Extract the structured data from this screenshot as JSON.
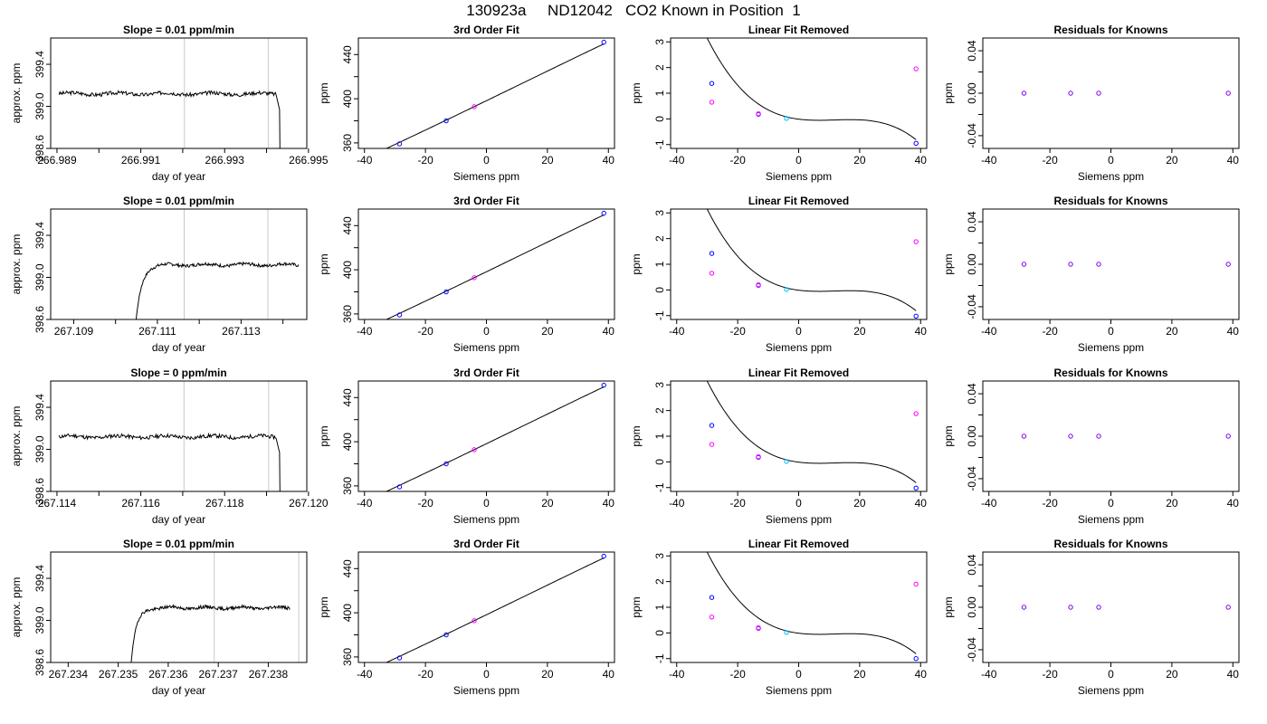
{
  "title_parts": [
    "130923a",
    "ND12042",
    "CO2 Known in Position  1"
  ],
  "colors": {
    "trace": "#000000",
    "marker_line": "#c8c8c8",
    "blue": "#0000ff",
    "magenta": "#ff00ff",
    "cyan": "#00bfff",
    "frame": "#000000"
  },
  "chart_data": [
    {
      "row": 1,
      "type": "line",
      "panel": "timeseries",
      "title": "Slope =  0.01  ppm/min",
      "xlabel": "day of year",
      "ylabel": "approx. ppm",
      "xlim": [
        266.98885,
        266.99496
      ],
      "ylim": [
        398.6,
        399.65
      ],
      "xticks": [
        266.989,
        266.99,
        266.991,
        266.992,
        266.993,
        266.994,
        266.995
      ],
      "xtick_labels": [
        "266.989",
        "",
        "266.991",
        "",
        "266.993",
        "",
        "266.995"
      ],
      "yticks": [
        398.6,
        399.0,
        399.4
      ],
      "ytick_labels": [
        "398.6",
        "399.0",
        "399.4"
      ],
      "markers": [
        266.99204,
        266.99404
      ],
      "trace": {
        "x0": 266.98905,
        "x1": 266.99423,
        "level": 399.12,
        "seed": 3,
        "rise_x": null,
        "drop_x": 266.99431,
        "rise_from": null,
        "wiggle": 0.018
      }
    },
    {
      "row": 2,
      "type": "line",
      "panel": "timeseries",
      "title": "Slope =  0.01  ppm/min",
      "xlabel": "day of year",
      "ylabel": "approx. ppm",
      "xlim": [
        267.10845,
        267.11457
      ],
      "ylim": [
        398.6,
        399.65
      ],
      "xticks": [
        267.109,
        267.11,
        267.111,
        267.112,
        267.113,
        267.114
      ],
      "xtick_labels": [
        "267.109",
        "",
        "267.111",
        "",
        "267.113",
        ""
      ],
      "yticks": [
        398.6,
        399.0,
        399.4
      ],
      "ytick_labels": [
        "398.6",
        "399.0",
        "399.4"
      ],
      "markers": [
        267.11164,
        267.11364
      ],
      "trace": {
        "x0": 267.11003,
        "x1": 267.11437,
        "level": 399.12,
        "seed": 7,
        "rise_x": 267.11048,
        "drop_x": null,
        "rise_from": 398.55,
        "wiggle": 0.015
      }
    },
    {
      "row": 3,
      "type": "line",
      "panel": "timeseries",
      "title": "Slope =  0  ppm/min",
      "xlabel": "day of year",
      "ylabel": "approx. ppm",
      "xlim": [
        267.11385,
        267.11996
      ],
      "ylim": [
        398.6,
        399.65
      ],
      "xticks": [
        267.114,
        267.115,
        267.116,
        267.117,
        267.118,
        267.119,
        267.12
      ],
      "xtick_labels": [
        "267.114",
        "",
        "267.116",
        "",
        "267.118",
        "",
        "267.120"
      ],
      "yticks": [
        398.6,
        399.0,
        399.4
      ],
      "ytick_labels": [
        "398.6",
        "399.0",
        "399.4"
      ],
      "markers": [
        267.11703,
        267.11905
      ],
      "trace": {
        "x0": 267.11405,
        "x1": 267.11923,
        "level": 399.12,
        "seed": 11,
        "rise_x": null,
        "drop_x": 267.11931,
        "rise_from": null,
        "wiggle": 0.018
      }
    },
    {
      "row": 4,
      "type": "line",
      "panel": "timeseries",
      "title": "Slope =  0.01  ppm/min",
      "xlabel": "day of year",
      "ylabel": "approx. ppm",
      "xlim": [
        267.23365,
        267.23877
      ],
      "ylim": [
        398.6,
        399.65
      ],
      "xticks": [
        267.234,
        267.235,
        267.236,
        267.237,
        267.238
      ],
      "xtick_labels": [
        "267.234",
        "267.235",
        "267.236",
        "267.237",
        "267.238"
      ],
      "yticks": [
        398.6,
        399.0,
        399.4
      ],
      "ytick_labels": [
        "398.6",
        "399.0",
        "399.4"
      ],
      "markers": [
        267.23692,
        267.23861
      ],
      "trace": {
        "x0": 267.23517,
        "x1": 267.23843,
        "level": 399.12,
        "seed": 19,
        "rise_x": 267.23525,
        "drop_x": null,
        "rise_from": 398.55,
        "wiggle": 0.015
      }
    },
    {
      "row": 1,
      "type": "scatter",
      "panel": "fit3",
      "title": "3rd Order Fit",
      "xlabel": "Siemens ppm",
      "ylabel": "ppm",
      "xlim": [
        -42,
        42
      ],
      "ylim": [
        355,
        455
      ],
      "xticks": [
        -40,
        -20,
        0,
        20,
        40
      ],
      "xtick_labels": [
        "-40",
        "-20",
        "0",
        "20",
        "40"
      ],
      "yticks": [
        360,
        380,
        400,
        420,
        440
      ],
      "ytick_labels": [
        "360",
        "",
        "400",
        "",
        "440"
      ],
      "curve": {
        "x_from": -38,
        "x_to": 38.5,
        "coeffs": [
          398.2,
          1.3396,
          0.00033,
          -1.02e-05
        ]
      },
      "points": [
        {
          "x": -28.5,
          "y": 359.1,
          "color": "blue"
        },
        {
          "x": -13.2,
          "y": 380.0,
          "color": "blue"
        },
        {
          "x": -4.0,
          "y": 392.8,
          "color": "magenta"
        },
        {
          "x": 38.5,
          "y": 451.2,
          "color": "blue"
        }
      ]
    },
    {
      "row": 2,
      "type": "scatter",
      "panel": "fit3",
      "title": "3rd Order Fit",
      "xlabel": "Siemens ppm",
      "ylabel": "ppm",
      "xlim": [
        -42,
        42
      ],
      "ylim": [
        355,
        455
      ],
      "xticks": [
        -40,
        -20,
        0,
        20,
        40
      ],
      "xtick_labels": [
        "-40",
        "-20",
        "0",
        "20",
        "40"
      ],
      "yticks": [
        360,
        380,
        400,
        420,
        440
      ],
      "ytick_labels": [
        "360",
        "",
        "400",
        "",
        "440"
      ],
      "curve": {
        "x_from": -38,
        "x_to": 38.5,
        "coeffs": [
          398.2,
          1.3396,
          0.00033,
          -1.02e-05
        ]
      },
      "points": [
        {
          "x": -28.5,
          "y": 359.1,
          "color": "blue"
        },
        {
          "x": -13.2,
          "y": 380.0,
          "color": "blue"
        },
        {
          "x": -4.0,
          "y": 392.8,
          "color": "magenta"
        },
        {
          "x": 38.5,
          "y": 451.2,
          "color": "blue"
        }
      ]
    },
    {
      "row": 3,
      "type": "scatter",
      "panel": "fit3",
      "title": "3rd Order Fit",
      "xlabel": "Siemens ppm",
      "ylabel": "ppm",
      "xlim": [
        -42,
        42
      ],
      "ylim": [
        355,
        455
      ],
      "xticks": [
        -40,
        -20,
        0,
        20,
        40
      ],
      "xtick_labels": [
        "-40",
        "-20",
        "0",
        "20",
        "40"
      ],
      "yticks": [
        360,
        380,
        400,
        420,
        440
      ],
      "ytick_labels": [
        "360",
        "",
        "400",
        "",
        "440"
      ],
      "curve": {
        "x_from": -38,
        "x_to": 38.5,
        "coeffs": [
          398.2,
          1.3396,
          0.00033,
          -1.02e-05
        ]
      },
      "points": [
        {
          "x": -28.5,
          "y": 359.1,
          "color": "blue"
        },
        {
          "x": -13.2,
          "y": 380.0,
          "color": "blue"
        },
        {
          "x": -4.0,
          "y": 392.8,
          "color": "magenta"
        },
        {
          "x": 38.5,
          "y": 451.2,
          "color": "blue"
        }
      ]
    },
    {
      "row": 4,
      "type": "scatter",
      "panel": "fit3",
      "title": "3rd Order Fit",
      "xlabel": "Siemens ppm",
      "ylabel": "ppm",
      "xlim": [
        -42,
        42
      ],
      "ylim": [
        355,
        455
      ],
      "xticks": [
        -40,
        -20,
        0,
        20,
        40
      ],
      "xtick_labels": [
        "-40",
        "-20",
        "0",
        "20",
        "40"
      ],
      "yticks": [
        360,
        380,
        400,
        420,
        440
      ],
      "ytick_labels": [
        "360",
        "",
        "400",
        "",
        "440"
      ],
      "curve": {
        "x_from": -38,
        "x_to": 38.5,
        "coeffs": [
          398.2,
          1.3396,
          0.00033,
          -1.02e-05
        ]
      },
      "points": [
        {
          "x": -28.5,
          "y": 359.1,
          "color": "blue"
        },
        {
          "x": -13.2,
          "y": 380.0,
          "color": "blue"
        },
        {
          "x": -4.0,
          "y": 392.8,
          "color": "magenta"
        },
        {
          "x": 38.5,
          "y": 451.2,
          "color": "blue"
        }
      ]
    },
    {
      "row": 1,
      "type": "scatter",
      "panel": "linfit",
      "title": "Linear Fit Removed",
      "xlabel": "Siemens ppm",
      "ylabel": "ppm",
      "xlim": [
        -42,
        42
      ],
      "ylim": [
        -1.15,
        3.15
      ],
      "xticks": [
        -40,
        -20,
        0,
        20,
        40
      ],
      "xtick_labels": [
        "-40",
        "-20",
        "0",
        "20",
        "40"
      ],
      "yticks": [
        -1,
        0,
        1,
        2,
        3
      ],
      "ytick_labels": [
        "-1",
        "0",
        "1",
        "2",
        "3"
      ],
      "curve": {
        "x_from": -38,
        "x_to": 38.5,
        "coeffs": [
          -0.011,
          -0.0154,
          0.00162,
          -4.57e-05
        ]
      },
      "points": [
        {
          "x": -28.5,
          "y": 1.38,
          "color": "blue"
        },
        {
          "x": -28.5,
          "y": 0.65,
          "color": "magenta"
        },
        {
          "x": -13.2,
          "y": 0.18,
          "color": "blue"
        },
        {
          "x": -13.2,
          "y": 0.2,
          "color": "magenta"
        },
        {
          "x": -4.0,
          "y": 0.02,
          "color": "cyan"
        },
        {
          "x": 38.5,
          "y": -0.95,
          "color": "blue"
        },
        {
          "x": 38.5,
          "y": 1.95,
          "color": "magenta"
        }
      ]
    },
    {
      "row": 2,
      "type": "scatter",
      "panel": "linfit",
      "title": "Linear Fit Removed",
      "xlabel": "Siemens ppm",
      "ylabel": "ppm",
      "xlim": [
        -42,
        42
      ],
      "ylim": [
        -1.15,
        3.15
      ],
      "xticks": [
        -40,
        -20,
        0,
        20,
        40
      ],
      "xtick_labels": [
        "-40",
        "-20",
        "0",
        "20",
        "40"
      ],
      "yticks": [
        -1,
        0,
        1,
        2,
        3
      ],
      "ytick_labels": [
        "-1",
        "0",
        "1",
        "2",
        "3"
      ],
      "curve": {
        "x_from": -38,
        "x_to": 38.5,
        "coeffs": [
          -0.011,
          -0.0154,
          0.00162,
          -4.57e-05
        ]
      },
      "points": [
        {
          "x": -28.5,
          "y": 1.42,
          "color": "blue"
        },
        {
          "x": -28.5,
          "y": 0.65,
          "color": "magenta"
        },
        {
          "x": -13.2,
          "y": 0.18,
          "color": "blue"
        },
        {
          "x": -13.2,
          "y": 0.2,
          "color": "magenta"
        },
        {
          "x": -4.0,
          "y": 0.02,
          "color": "cyan"
        },
        {
          "x": 38.5,
          "y": -1.02,
          "color": "blue"
        },
        {
          "x": 38.5,
          "y": 1.88,
          "color": "magenta"
        }
      ]
    },
    {
      "row": 3,
      "type": "scatter",
      "panel": "linfit",
      "title": "Linear Fit Removed",
      "xlabel": "Siemens ppm",
      "ylabel": "ppm",
      "xlim": [
        -42,
        42
      ],
      "ylim": [
        -1.15,
        3.15
      ],
      "xticks": [
        -40,
        -20,
        0,
        20,
        40
      ],
      "xtick_labels": [
        "-40",
        "-20",
        "0",
        "20",
        "40"
      ],
      "yticks": [
        -1,
        0,
        1,
        2,
        3
      ],
      "ytick_labels": [
        "-1",
        "0",
        "1",
        "2",
        "3"
      ],
      "curve": {
        "x_from": -38,
        "x_to": 38.5,
        "coeffs": [
          -0.011,
          -0.0154,
          0.00162,
          -4.57e-05
        ]
      },
      "points": [
        {
          "x": -28.5,
          "y": 1.42,
          "color": "blue"
        },
        {
          "x": -28.5,
          "y": 0.68,
          "color": "magenta"
        },
        {
          "x": -13.2,
          "y": 0.18,
          "color": "blue"
        },
        {
          "x": -13.2,
          "y": 0.2,
          "color": "magenta"
        },
        {
          "x": -4.0,
          "y": 0.02,
          "color": "cyan"
        },
        {
          "x": 38.5,
          "y": -1.02,
          "color": "blue"
        },
        {
          "x": 38.5,
          "y": 1.88,
          "color": "magenta"
        }
      ]
    },
    {
      "row": 4,
      "type": "scatter",
      "panel": "linfit",
      "title": "Linear Fit Removed",
      "xlabel": "Siemens ppm",
      "ylabel": "ppm",
      "xlim": [
        -42,
        42
      ],
      "ylim": [
        -1.15,
        3.15
      ],
      "xticks": [
        -40,
        -20,
        0,
        20,
        40
      ],
      "xtick_labels": [
        "-40",
        "-20",
        "0",
        "20",
        "40"
      ],
      "yticks": [
        -1,
        0,
        1,
        2,
        3
      ],
      "ytick_labels": [
        "-1",
        "0",
        "1",
        "2",
        "3"
      ],
      "curve": {
        "x_from": -38,
        "x_to": 38.5,
        "coeffs": [
          -0.011,
          -0.0154,
          0.00162,
          -4.57e-05
        ]
      },
      "points": [
        {
          "x": -28.5,
          "y": 1.38,
          "color": "blue"
        },
        {
          "x": -28.5,
          "y": 0.62,
          "color": "magenta"
        },
        {
          "x": -13.2,
          "y": 0.18,
          "color": "blue"
        },
        {
          "x": -13.2,
          "y": 0.2,
          "color": "magenta"
        },
        {
          "x": -4.0,
          "y": 0.02,
          "color": "cyan"
        },
        {
          "x": 38.5,
          "y": -1.0,
          "color": "blue"
        },
        {
          "x": 38.5,
          "y": 1.9,
          "color": "magenta"
        }
      ]
    },
    {
      "row": 1,
      "type": "scatter",
      "panel": "resid",
      "title": "Residuals for Knowns",
      "xlabel": "Siemens ppm",
      "ylabel": "ppm",
      "xlim": [
        -42,
        42
      ],
      "ylim": [
        -0.052,
        0.052
      ],
      "xticks": [
        -40,
        -20,
        0,
        20,
        40
      ],
      "xtick_labels": [
        "-40",
        "-20",
        "0",
        "20",
        "40"
      ],
      "yticks": [
        -0.04,
        -0.02,
        0.0,
        0.02,
        0.04
      ],
      "ytick_labels": [
        "-0.04",
        "",
        "0.00",
        "",
        "0.04"
      ],
      "curve": null,
      "points": [
        {
          "x": -28.5,
          "y": 0,
          "color": "purple"
        },
        {
          "x": -13.2,
          "y": 0,
          "color": "purple"
        },
        {
          "x": -4.0,
          "y": 0,
          "color": "purple"
        },
        {
          "x": 38.5,
          "y": 0,
          "color": "purple"
        }
      ]
    },
    {
      "row": 2,
      "type": "scatter",
      "panel": "resid",
      "title": "Residuals for Knowns",
      "xlabel": "Siemens ppm",
      "ylabel": "ppm",
      "xlim": [
        -42,
        42
      ],
      "ylim": [
        -0.052,
        0.052
      ],
      "xticks": [
        -40,
        -20,
        0,
        20,
        40
      ],
      "xtick_labels": [
        "-40",
        "-20",
        "0",
        "20",
        "40"
      ],
      "yticks": [
        -0.04,
        -0.02,
        0.0,
        0.02,
        0.04
      ],
      "ytick_labels": [
        "-0.04",
        "",
        "0.00",
        "",
        "0.04"
      ],
      "curve": null,
      "points": [
        {
          "x": -28.5,
          "y": 0,
          "color": "purple"
        },
        {
          "x": -13.2,
          "y": 0,
          "color": "purple"
        },
        {
          "x": -4.0,
          "y": 0,
          "color": "purple"
        },
        {
          "x": 38.5,
          "y": 0,
          "color": "purple"
        }
      ]
    },
    {
      "row": 3,
      "type": "scatter",
      "panel": "resid",
      "title": "Residuals for Knowns",
      "xlabel": "Siemens ppm",
      "ylabel": "ppm",
      "xlim": [
        -42,
        42
      ],
      "ylim": [
        -0.052,
        0.052
      ],
      "xticks": [
        -40,
        -20,
        0,
        20,
        40
      ],
      "xtick_labels": [
        "-40",
        "-20",
        "0",
        "20",
        "40"
      ],
      "yticks": [
        -0.04,
        -0.02,
        0.0,
        0.02,
        0.04
      ],
      "ytick_labels": [
        "-0.04",
        "",
        "0.00",
        "",
        "0.04"
      ],
      "curve": null,
      "points": [
        {
          "x": -28.5,
          "y": 0,
          "color": "purple"
        },
        {
          "x": -13.2,
          "y": 0,
          "color": "purple"
        },
        {
          "x": -4.0,
          "y": 0,
          "color": "purple"
        },
        {
          "x": 38.5,
          "y": 0,
          "color": "purple"
        }
      ]
    },
    {
      "row": 4,
      "type": "scatter",
      "panel": "resid",
      "title": "Residuals for Knowns",
      "xlabel": "Siemens ppm",
      "ylabel": "ppm",
      "xlim": [
        -42,
        42
      ],
      "ylim": [
        -0.052,
        0.052
      ],
      "xticks": [
        -40,
        -20,
        0,
        20,
        40
      ],
      "xtick_labels": [
        "-40",
        "-20",
        "0",
        "20",
        "40"
      ],
      "yticks": [
        -0.04,
        -0.02,
        0.0,
        0.02,
        0.04
      ],
      "ytick_labels": [
        "-0.04",
        "",
        "0.00",
        "",
        "0.04"
      ],
      "curve": null,
      "points": [
        {
          "x": -28.5,
          "y": 0,
          "color": "purple"
        },
        {
          "x": -13.2,
          "y": 0,
          "color": "purple"
        },
        {
          "x": -4.0,
          "y": 0,
          "color": "purple"
        },
        {
          "x": 38.5,
          "y": 0,
          "color": "purple"
        }
      ]
    }
  ]
}
